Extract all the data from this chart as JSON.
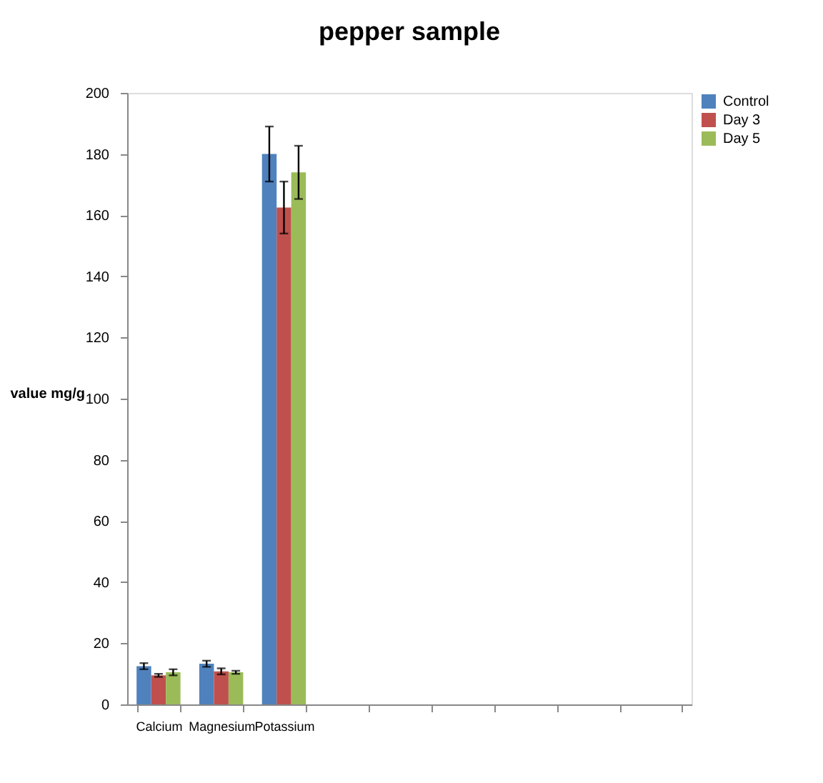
{
  "chart_data": {
    "type": "bar",
    "title": "pepper sample",
    "ylabel": "value mg/g",
    "categories": [
      "Calcium",
      "Magnesium",
      "Potassium",
      null,
      null,
      null,
      null,
      null,
      null
    ],
    "series": [
      {
        "name": "Control",
        "color": "#4f81bd",
        "values": [
          12.5,
          13.3,
          180,
          null,
          null,
          null,
          null,
          null,
          null
        ],
        "errors": [
          1,
          1,
          9,
          null,
          null,
          null,
          null,
          null,
          null
        ]
      },
      {
        "name": "Day 3",
        "color": "#c0504d",
        "values": [
          9.5,
          10.8,
          162.5,
          null,
          null,
          null,
          null,
          null,
          null
        ],
        "errors": [
          0.5,
          1,
          8.5,
          null,
          null,
          null,
          null,
          null,
          null
        ]
      },
      {
        "name": "Day 5",
        "color": "#9bbb59",
        "values": [
          10.5,
          10.5,
          174,
          null,
          null,
          null,
          null,
          null,
          null
        ],
        "errors": [
          1,
          0.5,
          8.7,
          null,
          null,
          null,
          null,
          null,
          null
        ]
      }
    ],
    "ylim": [
      0,
      200
    ],
    "yticks": [
      0,
      20,
      40,
      60,
      80,
      100,
      120,
      140,
      160,
      180,
      200
    ],
    "grid": false,
    "legend": "right"
  }
}
